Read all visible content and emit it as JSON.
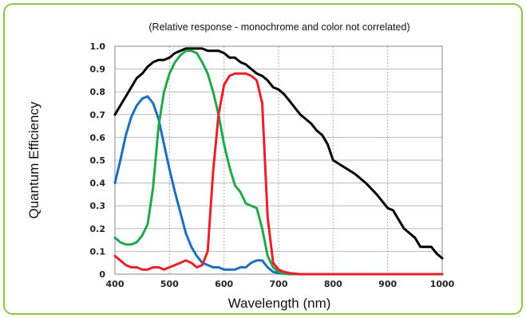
{
  "chart_data": {
    "type": "line",
    "title": "(Relative response - monochrome and color not correlated)",
    "xlabel": "Wavelength (nm)",
    "ylabel": "Quantum Efficiency",
    "xlim": [
      400,
      1000
    ],
    "ylim": [
      0,
      1.0
    ],
    "x_ticks": [
      "400",
      "500",
      "600",
      "700",
      "800",
      "900",
      "1000"
    ],
    "y_ticks": [
      "0",
      "0.1",
      "0.2",
      "0.3",
      "0.4",
      "0.5",
      "0.6",
      "0.7",
      "0.8",
      "0.9",
      "1.0"
    ],
    "grid": true,
    "legend": "none",
    "series": [
      {
        "color": "#000000",
        "x": [
          400,
          410,
          420,
          430,
          440,
          450,
          460,
          470,
          480,
          490,
          500,
          510,
          520,
          530,
          540,
          550,
          560,
          570,
          580,
          590,
          600,
          610,
          620,
          630,
          640,
          650,
          660,
          670,
          680,
          690,
          700,
          710,
          720,
          730,
          740,
          750,
          760,
          770,
          780,
          790,
          800,
          820,
          840,
          860,
          880,
          900,
          910,
          920,
          930,
          940,
          950,
          960,
          970,
          980,
          990,
          1000
        ],
        "y": [
          0.7,
          0.74,
          0.78,
          0.82,
          0.86,
          0.88,
          0.91,
          0.93,
          0.94,
          0.94,
          0.95,
          0.97,
          0.98,
          0.99,
          0.99,
          0.99,
          0.99,
          0.98,
          0.98,
          0.98,
          0.97,
          0.95,
          0.95,
          0.93,
          0.92,
          0.9,
          0.88,
          0.87,
          0.85,
          0.82,
          0.81,
          0.79,
          0.76,
          0.73,
          0.7,
          0.68,
          0.66,
          0.63,
          0.61,
          0.57,
          0.5,
          0.47,
          0.44,
          0.4,
          0.35,
          0.29,
          0.28,
          0.24,
          0.2,
          0.18,
          0.16,
          0.12,
          0.12,
          0.12,
          0.09,
          0.07
        ]
      },
      {
        "color": "#1a6fbf",
        "x": [
          400,
          410,
          420,
          430,
          440,
          450,
          460,
          470,
          480,
          490,
          500,
          510,
          520,
          530,
          540,
          550,
          560,
          570,
          580,
          590,
          600,
          620,
          630,
          640,
          650,
          660,
          670,
          680,
          690,
          700,
          720,
          750,
          800,
          900,
          1000
        ],
        "y": [
          0.4,
          0.5,
          0.61,
          0.69,
          0.74,
          0.77,
          0.78,
          0.75,
          0.68,
          0.57,
          0.46,
          0.36,
          0.27,
          0.18,
          0.12,
          0.08,
          0.05,
          0.04,
          0.03,
          0.03,
          0.02,
          0.02,
          0.03,
          0.03,
          0.05,
          0.06,
          0.06,
          0.03,
          0.01,
          0.005,
          0.0,
          0.0,
          0.0,
          0.0,
          0.0
        ]
      },
      {
        "color": "#22a84a",
        "x": [
          400,
          410,
          420,
          430,
          440,
          450,
          460,
          470,
          480,
          490,
          500,
          510,
          520,
          530,
          540,
          550,
          560,
          570,
          580,
          590,
          600,
          610,
          620,
          630,
          640,
          650,
          660,
          670,
          680,
          690,
          700,
          720,
          750,
          800,
          1000
        ],
        "y": [
          0.16,
          0.14,
          0.13,
          0.13,
          0.14,
          0.17,
          0.22,
          0.38,
          0.65,
          0.8,
          0.88,
          0.93,
          0.96,
          0.98,
          0.98,
          0.97,
          0.93,
          0.88,
          0.8,
          0.7,
          0.57,
          0.47,
          0.39,
          0.36,
          0.31,
          0.3,
          0.29,
          0.2,
          0.08,
          0.03,
          0.01,
          0.0,
          0.0,
          0.0,
          0.0
        ]
      },
      {
        "color": "#e8202a",
        "x": [
          400,
          410,
          420,
          430,
          440,
          450,
          460,
          470,
          480,
          490,
          500,
          510,
          520,
          530,
          540,
          550,
          560,
          570,
          580,
          590,
          600,
          610,
          620,
          630,
          640,
          650,
          660,
          670,
          680,
          690,
          700,
          710,
          720,
          740,
          760,
          800,
          1000
        ],
        "y": [
          0.08,
          0.06,
          0.04,
          0.03,
          0.03,
          0.02,
          0.02,
          0.03,
          0.03,
          0.02,
          0.03,
          0.04,
          0.05,
          0.06,
          0.05,
          0.03,
          0.04,
          0.1,
          0.45,
          0.7,
          0.83,
          0.87,
          0.88,
          0.88,
          0.88,
          0.87,
          0.85,
          0.75,
          0.25,
          0.05,
          0.02,
          0.01,
          0.005,
          0.0,
          0.0,
          0.0,
          0.0
        ]
      }
    ]
  }
}
